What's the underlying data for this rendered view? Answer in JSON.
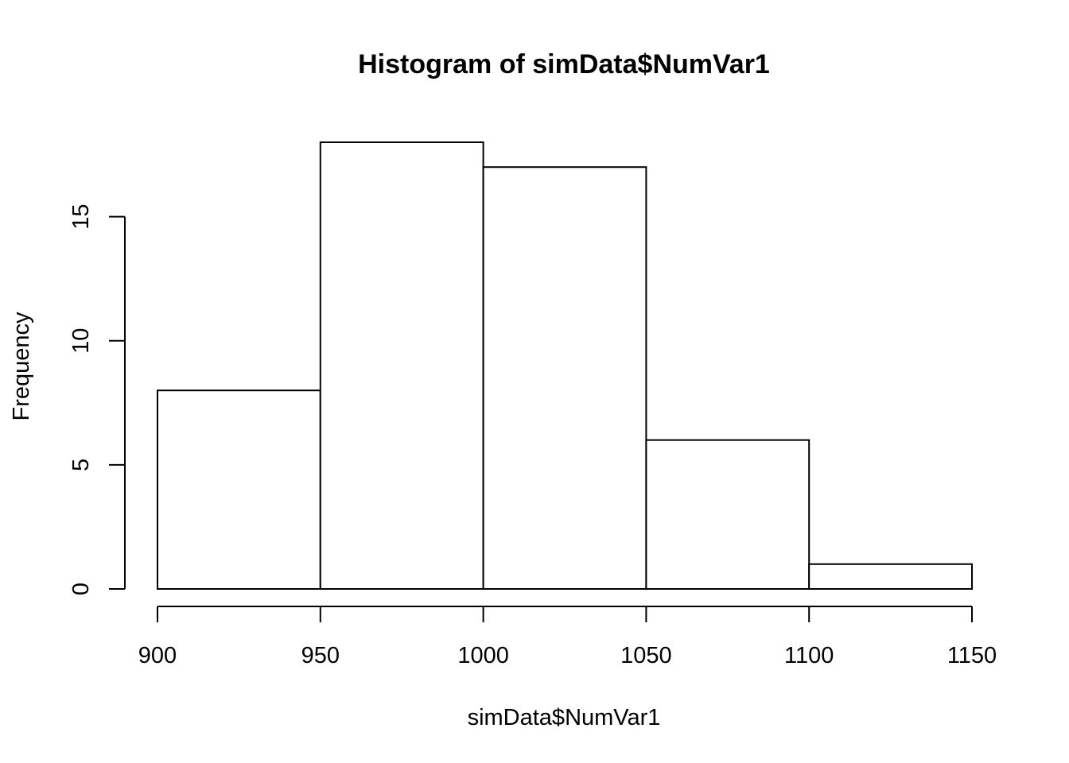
{
  "chart_data": {
    "type": "bar",
    "title": "Histogram of simData$NumVar1",
    "xlabel": "simData$NumVar1",
    "ylabel": "Frequency",
    "bins": [
      {
        "from": 900,
        "to": 950,
        "count": 8
      },
      {
        "from": 950,
        "to": 1000,
        "count": 18
      },
      {
        "from": 1000,
        "to": 1050,
        "count": 17
      },
      {
        "from": 1050,
        "to": 1100,
        "count": 6
      },
      {
        "from": 1100,
        "to": 1150,
        "count": 1
      }
    ],
    "x_ticks": [
      "900",
      "950",
      "1000",
      "1050",
      "1100",
      "1150"
    ],
    "y_ticks": [
      "0",
      "5",
      "10",
      "15"
    ],
    "xlim": [
      900,
      1150
    ],
    "ylim": [
      0,
      18
    ],
    "grid": false,
    "legend": "none",
    "colors": {
      "bar_fill": "#ffffff",
      "bar_stroke": "#000000",
      "text": "#000000"
    }
  }
}
